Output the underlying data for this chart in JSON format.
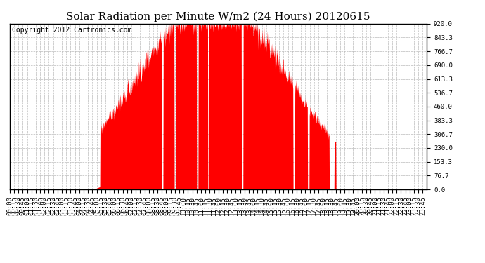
{
  "title": "Solar Radiation per Minute W/m2 (24 Hours) 20120615",
  "copyright_text": "Copyright 2012 Cartronics.com",
  "ylim": [
    0.0,
    920.0
  ],
  "yticks": [
    0.0,
    76.7,
    153.3,
    230.0,
    306.7,
    383.3,
    460.0,
    536.7,
    613.3,
    690.0,
    766.7,
    843.3,
    920.0
  ],
  "fill_color": "#FF0000",
  "background_color": "#FFFFFF",
  "grid_color": "#BBBBBB",
  "dashed_line_color": "#FF0000",
  "title_fontsize": 11,
  "tick_fontsize": 6.5,
  "copyright_fontsize": 7
}
